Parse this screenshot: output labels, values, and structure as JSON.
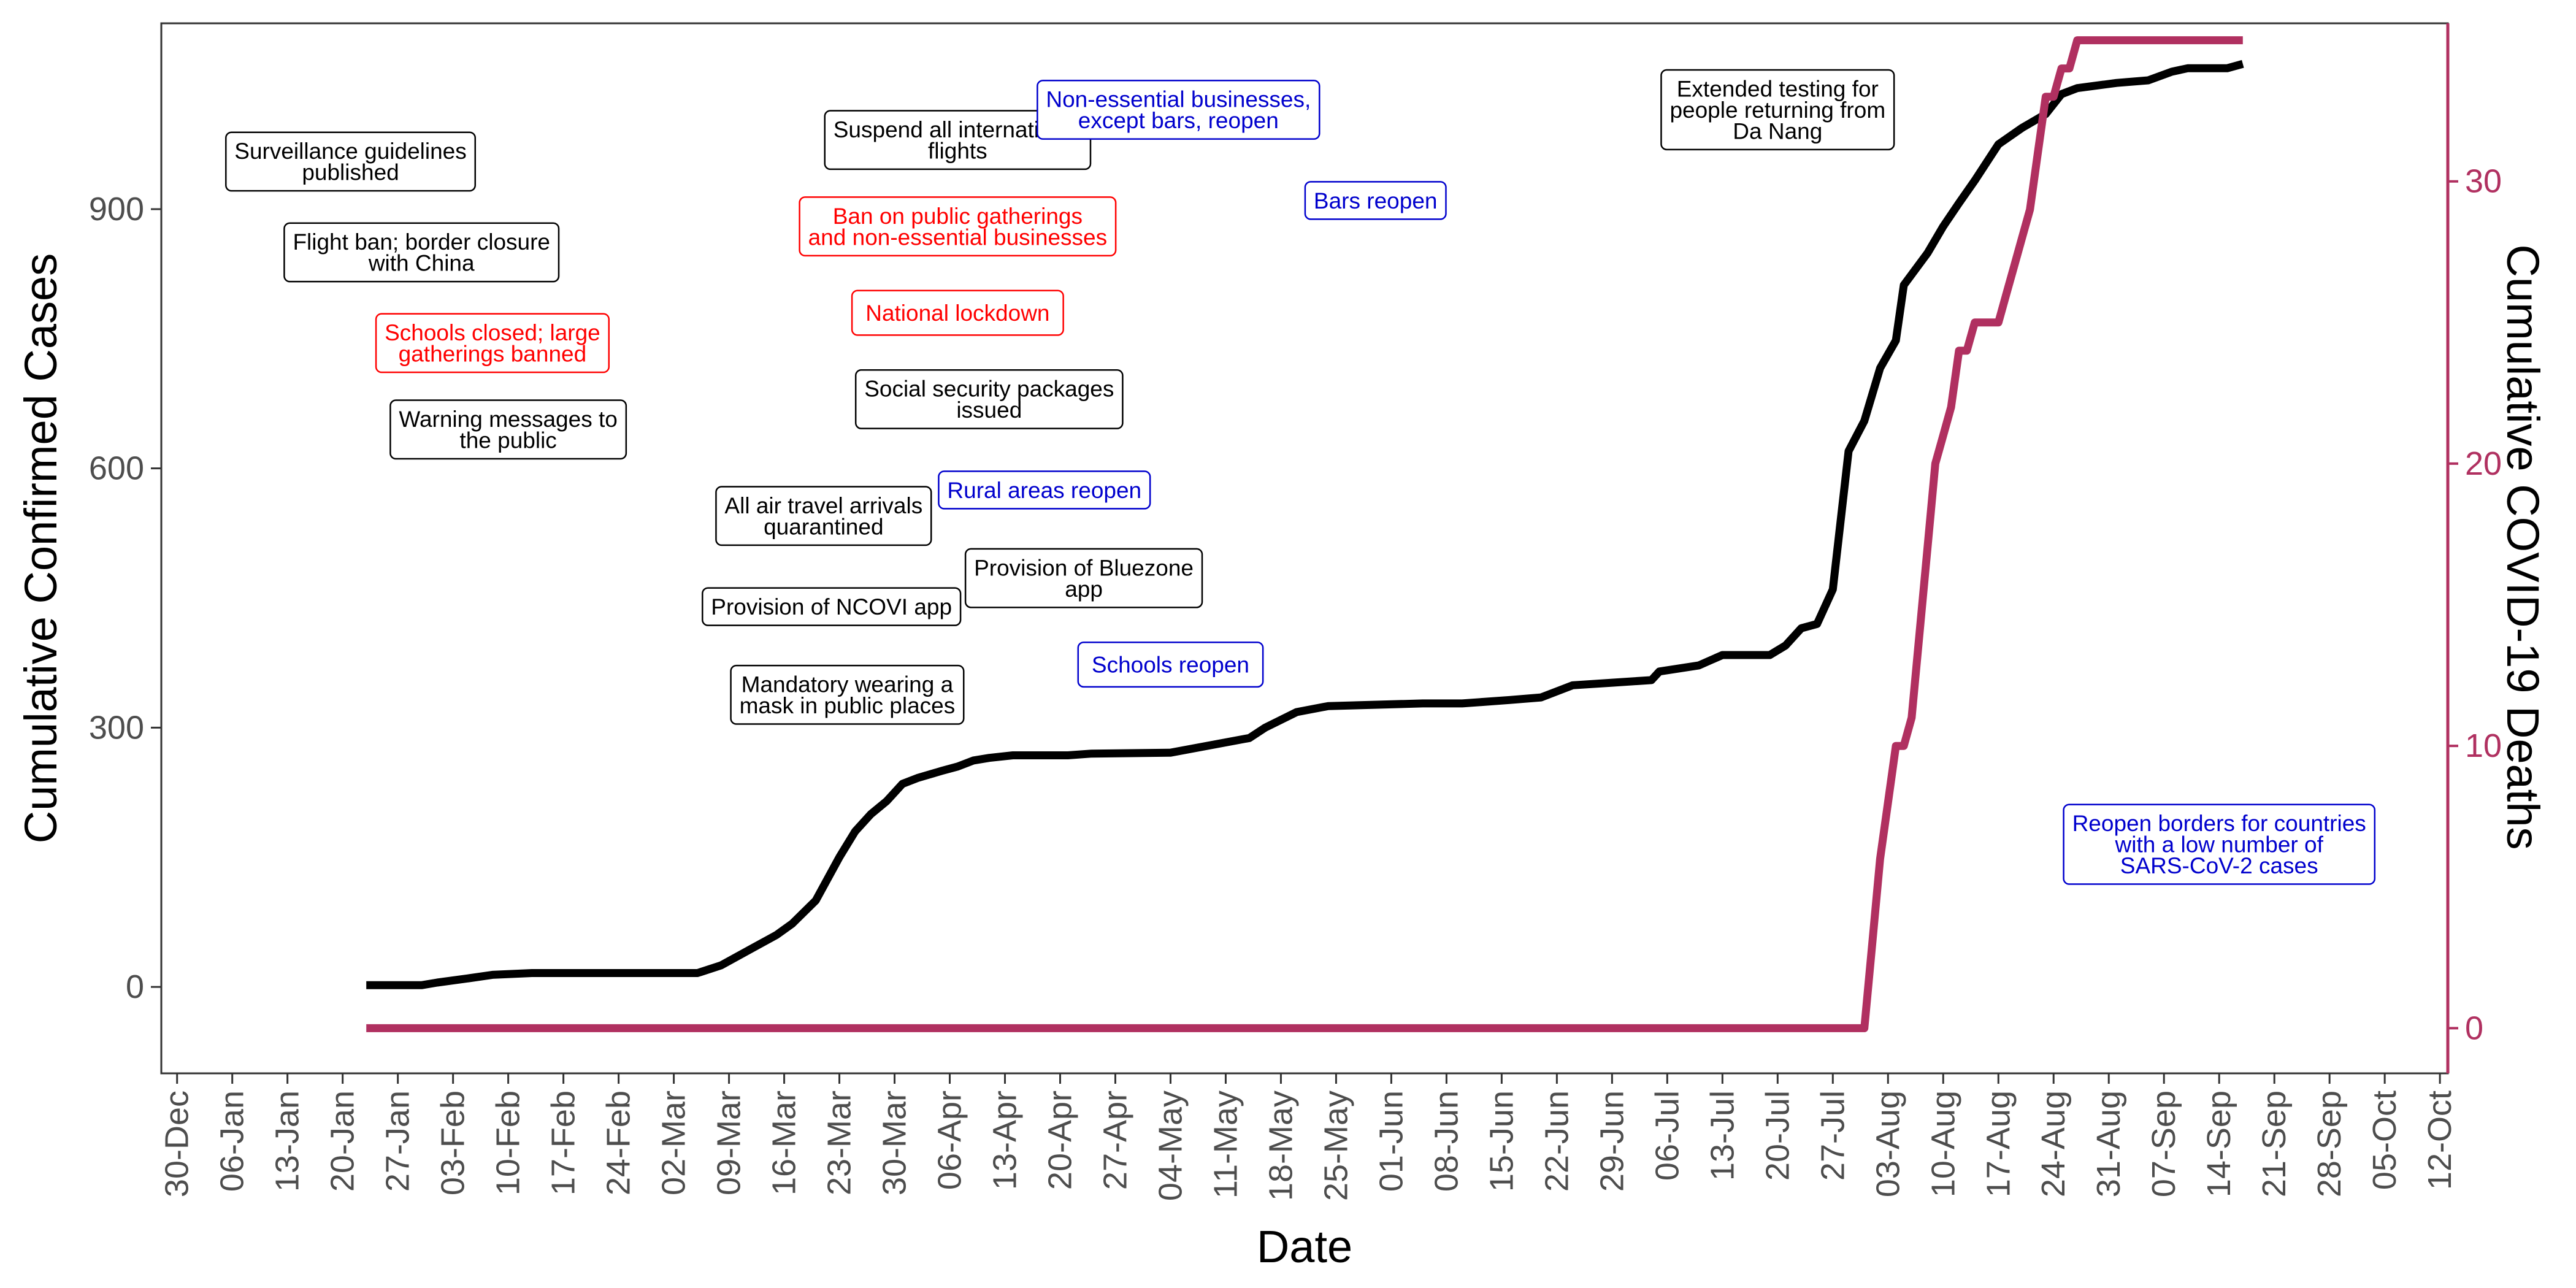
{
  "chart_data": {
    "type": "line",
    "xlabel": "Date",
    "ylabel": "Cumulative Confirmed Cases",
    "y2label": "Cumulative COVID-19 Deaths",
    "xlim": [
      "2019-12-28",
      "2020-10-13"
    ],
    "ylim": [
      -100,
      1115
    ],
    "y2lim": [
      -1.6,
      35.6
    ],
    "grid": false,
    "colors": {
      "cases": "#000000",
      "deaths": "#b03060",
      "black": "#000000",
      "red": "#ff0000",
      "blue": "#0000cd"
    },
    "x_ticks": [
      "2019-12-30",
      "2020-01-06",
      "2020-01-13",
      "2020-01-20",
      "2020-01-27",
      "2020-02-03",
      "2020-02-10",
      "2020-02-17",
      "2020-02-24",
      "2020-03-02",
      "2020-03-09",
      "2020-03-16",
      "2020-03-23",
      "2020-03-30",
      "2020-04-06",
      "2020-04-13",
      "2020-04-20",
      "2020-04-27",
      "2020-05-04",
      "2020-05-11",
      "2020-05-18",
      "2020-05-25",
      "2020-06-01",
      "2020-06-08",
      "2020-06-15",
      "2020-06-22",
      "2020-06-29",
      "2020-07-06",
      "2020-07-13",
      "2020-07-20",
      "2020-07-27",
      "2020-08-03",
      "2020-08-10",
      "2020-08-17",
      "2020-08-24",
      "2020-08-31",
      "2020-09-07",
      "2020-09-14",
      "2020-09-21",
      "2020-09-28",
      "2020-10-05",
      "2020-10-12"
    ],
    "x_tick_labels": [
      "30-Dec",
      "06-Jan",
      "13-Jan",
      "20-Jan",
      "27-Jan",
      "03-Feb",
      "10-Feb",
      "17-Feb",
      "24-Feb",
      "02-Mar",
      "09-Mar",
      "16-Mar",
      "23-Mar",
      "30-Mar",
      "06-Apr",
      "13-Apr",
      "20-Apr",
      "27-Apr",
      "04-May",
      "11-May",
      "18-May",
      "25-May",
      "01-Jun",
      "08-Jun",
      "15-Jun",
      "22-Jun",
      "29-Jun",
      "06-Jul",
      "13-Jul",
      "20-Jul",
      "27-Jul",
      "03-Aug",
      "10-Aug",
      "17-Aug",
      "24-Aug",
      "31-Aug",
      "07-Sep",
      "14-Sep",
      "21-Sep",
      "28-Sep",
      "05-Oct",
      "12-Oct"
    ],
    "y_ticks": [
      0,
      300,
      600,
      900
    ],
    "y_tick_labels": [
      "0",
      "300",
      "600",
      "900"
    ],
    "y2_ticks": [
      0,
      10,
      20,
      30
    ],
    "y2_tick_labels": [
      "0",
      "10",
      "20",
      "30"
    ],
    "series": [
      {
        "key": "cases",
        "axis": "left",
        "x": [
          "2020-01-23",
          "2020-01-30",
          "2020-02-01",
          "2020-02-05",
          "2020-02-08",
          "2020-02-13",
          "2020-03-05",
          "2020-03-08",
          "2020-03-10",
          "2020-03-12",
          "2020-03-15",
          "2020-03-17",
          "2020-03-20",
          "2020-03-23",
          "2020-03-25",
          "2020-03-27",
          "2020-03-29",
          "2020-03-31",
          "2020-04-02",
          "2020-04-05",
          "2020-04-07",
          "2020-04-09",
          "2020-04-11",
          "2020-04-14",
          "2020-04-21",
          "2020-04-24",
          "2020-05-04",
          "2020-05-14",
          "2020-05-16",
          "2020-05-20",
          "2020-05-24",
          "2020-06-05",
          "2020-06-10",
          "2020-06-16",
          "2020-06-20",
          "2020-06-24",
          "2020-06-29",
          "2020-07-04",
          "2020-07-05",
          "2020-07-10",
          "2020-07-13",
          "2020-07-19",
          "2020-07-21",
          "2020-07-23",
          "2020-07-25",
          "2020-07-27",
          "2020-07-29",
          "2020-07-31",
          "2020-08-02",
          "2020-08-04",
          "2020-08-05",
          "2020-08-08",
          "2020-08-10",
          "2020-08-12",
          "2020-08-14",
          "2020-08-17",
          "2020-08-20",
          "2020-08-23",
          "2020-08-25",
          "2020-08-27",
          "2020-09-01",
          "2020-09-05",
          "2020-09-08",
          "2020-09-10",
          "2020-09-15",
          "2020-09-17"
        ],
        "y": [
          2,
          2,
          5,
          10,
          14,
          16,
          16,
          25,
          35,
          45,
          60,
          73,
          100,
          150,
          180,
          200,
          215,
          235,
          242,
          250,
          255,
          262,
          265,
          268,
          268,
          270,
          271,
          288,
          300,
          318,
          325,
          328,
          328,
          332,
          335,
          349,
          352,
          355,
          365,
          372,
          384,
          384,
          395,
          415,
          420,
          460,
          620,
          655,
          716,
          748,
          812,
          849,
          880,
          907,
          933,
          975,
          994,
          1010,
          1033,
          1040,
          1046,
          1049,
          1059,
          1063,
          1063,
          1068
        ]
      },
      {
        "key": "deaths",
        "axis": "right",
        "x": [
          "2020-01-23",
          "2020-07-31",
          "2020-08-01",
          "2020-08-02",
          "2020-08-03",
          "2020-08-04",
          "2020-08-05",
          "2020-08-06",
          "2020-08-07",
          "2020-08-08",
          "2020-08-09",
          "2020-08-10",
          "2020-08-11",
          "2020-08-12",
          "2020-08-13",
          "2020-08-14",
          "2020-08-15",
          "2020-08-16",
          "2020-08-17",
          "2020-08-18",
          "2020-08-19",
          "2020-08-20",
          "2020-08-21",
          "2020-08-22",
          "2020-08-23",
          "2020-08-24",
          "2020-08-25",
          "2020-08-26",
          "2020-08-27",
          "2020-08-28",
          "2020-08-29",
          "2020-08-30",
          "2020-08-31",
          "2020-09-01",
          "2020-09-02",
          "2020-09-03",
          "2020-09-04",
          "2020-09-05",
          "2020-09-06",
          "2020-09-07",
          "2020-09-17"
        ],
        "y": [
          0,
          0,
          3,
          6,
          8,
          10,
          10,
          11,
          14,
          17,
          20,
          21,
          22,
          24,
          24,
          25,
          25,
          25,
          25,
          26,
          27,
          28,
          29,
          31,
          33,
          33,
          34,
          34,
          35,
          35,
          35,
          35,
          35,
          35,
          35,
          35,
          35,
          35,
          35,
          35,
          35
        ]
      }
    ],
    "annotations": [
      {
        "text": [
          "Surveillance guidelines",
          "published"
        ],
        "x": "2020-01-21",
        "y": 955,
        "color": "black",
        "size": 1
      },
      {
        "text": [
          "Flight ban; border closure",
          "with China"
        ],
        "x": "2020-01-30",
        "y": 850,
        "color": "black",
        "size": 1
      },
      {
        "text": [
          "Schools closed; large",
          "gatherings banned"
        ],
        "x": "2020-02-08",
        "y": 745,
        "color": "red",
        "size": 1
      },
      {
        "text": [
          "Warning messages to",
          "the public"
        ],
        "x": "2020-02-10",
        "y": 645,
        "color": "black",
        "size": 1
      },
      {
        "text": [
          "Suspend all international",
          "flights"
        ],
        "x": "2020-04-07",
        "y": 980,
        "color": "black",
        "size": 1
      },
      {
        "text": [
          "Ban on public gatherings",
          "and non-essential businesses"
        ],
        "x": "2020-04-07",
        "y": 880,
        "color": "red",
        "size": 1
      },
      {
        "text": [
          "National lockdown"
        ],
        "x": "2020-04-07",
        "y": 780,
        "color": "red",
        "size": 1.58
      },
      {
        "text": [
          "Social security packages",
          "issued"
        ],
        "x": "2020-04-11",
        "y": 680,
        "color": "black",
        "size": 1
      },
      {
        "text": [
          "All air travel arrivals",
          "quarantined"
        ],
        "x": "2020-03-21",
        "y": 545,
        "color": "black",
        "size": 1
      },
      {
        "text": [
          "Rural areas reopen"
        ],
        "x": "2020-04-18",
        "y": 575,
        "color": "blue",
        "size": 1
      },
      {
        "text": [
          "Provision of NCOVI app"
        ],
        "x": "2020-03-22",
        "y": 440,
        "color": "black",
        "size": 1
      },
      {
        "text": [
          "Provision of Bluezone",
          "app"
        ],
        "x": "2020-04-23",
        "y": 473,
        "color": "black",
        "size": 1
      },
      {
        "text": [
          "Mandatory wearing a",
          "mask in public places"
        ],
        "x": "2020-03-24",
        "y": 338,
        "color": "black",
        "size": 1
      },
      {
        "text": [
          "Schools reopen"
        ],
        "x": "2020-05-04",
        "y": 373,
        "color": "blue",
        "size": 1.58
      },
      {
        "text": [
          "Non-essential businesses,",
          "except bars, reopen"
        ],
        "x": "2020-05-05",
        "y": 1015,
        "color": "blue",
        "size": 1
      },
      {
        "text": [
          "Bars reopen"
        ],
        "x": "2020-05-30",
        "y": 910,
        "color": "blue",
        "size": 1
      },
      {
        "text": [
          "Extended testing for",
          "people returning from",
          "Da Nang"
        ],
        "x": "2020-07-20",
        "y": 1015,
        "color": "black",
        "size": 1
      },
      {
        "text": [
          "Reopen borders for countries",
          "with a low number of",
          "SARS-CoV-2 cases"
        ],
        "x": "2020-09-14",
        "y": 165,
        "color": "blue",
        "size": 1
      }
    ]
  }
}
